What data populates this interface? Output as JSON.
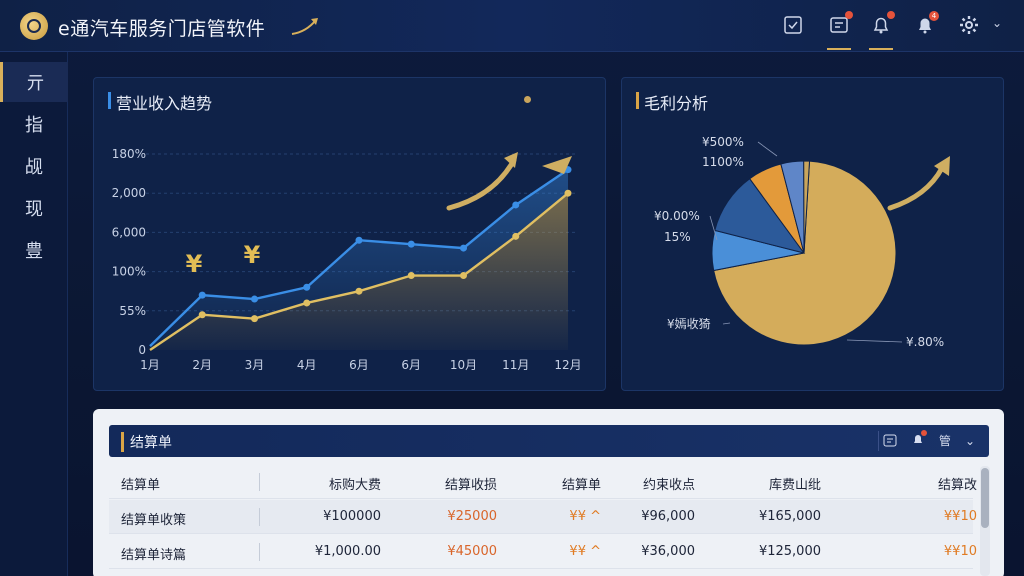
{
  "header": {
    "app_title": "e通汽车服务门店管软件",
    "icons": [
      "checkbox-icon",
      "message-icon",
      "bell-icon",
      "notification-icon",
      "gear-icon"
    ],
    "badge_count": "4"
  },
  "sidebar": {
    "items": [
      {
        "label": "亓",
        "active": true
      },
      {
        "label": "指"
      },
      {
        "label": "觇"
      },
      {
        "label": "现"
      },
      {
        "label": "豊"
      }
    ]
  },
  "revenue_panel": {
    "title": "营业收入趋势"
  },
  "profit_panel": {
    "title": "毛利分析"
  },
  "chart_data": [
    {
      "type": "line",
      "title": "营业收入趋势",
      "x": [
        "1月",
        "2月",
        "3月",
        "4月",
        "6月",
        "6月",
        "10月",
        "11月",
        "12月"
      ],
      "ytick_labels": [
        "0",
        "55%",
        "100%",
        "6,000",
        "2,000",
        "180%"
      ],
      "series": [
        {
          "values": [
            1,
            14,
            13,
            16,
            28,
            27,
            26,
            37,
            46
          ],
          "color": "#3a8ee6"
        },
        {
          "values": [
            0,
            9,
            8,
            12,
            15,
            19,
            19,
            29,
            40
          ],
          "color": "#e0bf62"
        }
      ],
      "annotations": [
        "¥",
        "¥"
      ]
    },
    {
      "type": "pie",
      "title": "毛利分析",
      "slices": [
        {
          "value": 71,
          "color": "#d4ac5b"
        },
        {
          "value": 7,
          "color": "#4a8fd8"
        },
        {
          "value": 11,
          "color": "#2c5a9a"
        },
        {
          "value": 6,
          "color": "#e39a3a"
        },
        {
          "value": 4,
          "color": "#5f86c8"
        },
        {
          "value": 1,
          "color": "#c9a55c"
        }
      ],
      "labels": [
        "¥500%",
        "1100%",
        "¥0.00%",
        "15%",
        "¥嫣收猗",
        "¥.80%"
      ]
    }
  ],
  "table": {
    "title": "结算单",
    "header_icons": [
      "message-icon",
      "bell-icon",
      "chevron-down-icon"
    ],
    "header_extra": "管",
    "columns": [
      "结算单",
      "标购大费",
      "结算收损",
      "结算单",
      "约束收点",
      "库费山纰",
      "结算改"
    ],
    "rows": [
      [
        "结算单收策",
        "¥100000",
        "¥25000",
        "¥¥ ^",
        "¥96,000",
        "¥165,000",
        "¥¥10"
      ],
      [
        "结算单诗篇",
        "¥1,000.00",
        "¥45000",
        "¥¥ ^",
        "¥36,000",
        "¥125,000",
        "¥¥10"
      ]
    ]
  }
}
